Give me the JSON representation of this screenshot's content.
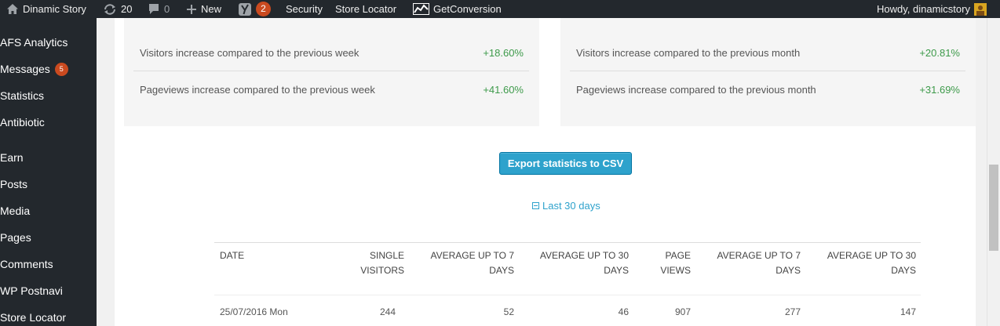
{
  "adminbar": {
    "site_name": "Dinamic Story",
    "updates_count": "20",
    "comments_count": "0",
    "new_label": "New",
    "yoast_count": "2",
    "security_label": "Security",
    "store_locator_label": "Store Locator",
    "getconversion_label": "GetConversion",
    "howdy_text": "Howdy, dinamicstory"
  },
  "sidebar": {
    "items": [
      {
        "label": "AFS Analytics"
      },
      {
        "label": "Messages",
        "badge": "5"
      },
      {
        "label": "Statistics"
      },
      {
        "label": "Antibiotic"
      },
      {
        "label": "Earn"
      },
      {
        "label": "Posts"
      },
      {
        "label": "Media"
      },
      {
        "label": "Pages"
      },
      {
        "label": "Comments"
      },
      {
        "label": "WP Postnavi"
      },
      {
        "label": "Store Locator"
      }
    ]
  },
  "weekly": {
    "visitors_label": "Visitors increase compared to the previous week",
    "visitors_value": "+18.60%",
    "pageviews_label": "Pageviews increase compared to the previous week",
    "pageviews_value": "+41.60%"
  },
  "monthly": {
    "visitors_label": "Visitors increase compared to the previous month",
    "visitors_value": "+20.81%",
    "pageviews_label": "Pageviews increase compared to the previous month",
    "pageviews_value": "+31.69%"
  },
  "export_label": "Export statistics to CSV",
  "period_label": "Last 30 days",
  "table": {
    "headers": {
      "date": "DATE",
      "single_visitors_1": "SINGLE",
      "single_visitors_2": "VISITORS",
      "avg7_1": "AVERAGE UP TO 7",
      "avg7_2": "DAYS",
      "avg30_1": "AVERAGE UP TO 30",
      "avg30_2": "DAYS",
      "page_views_1": "PAGE",
      "page_views_2": "VIEWS",
      "pv_avg7_1": "AVERAGE UP TO 7",
      "pv_avg7_2": "DAYS",
      "pv_avg30_1": "AVERAGE UP TO 30",
      "pv_avg30_2": "DAYS"
    },
    "rows": [
      {
        "date": "25/07/2016 Mon",
        "visitors": "244",
        "avg7": "52",
        "avg30": "46",
        "pageviews": "907",
        "pv_avg7": "277",
        "pv_avg30": "147"
      }
    ]
  }
}
